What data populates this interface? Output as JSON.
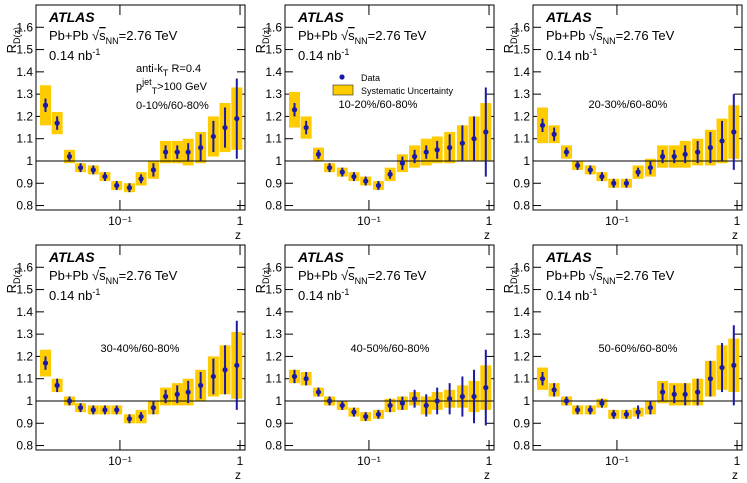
{
  "chart_data": [
    {
      "type": "scatter",
      "experiment": "ATLAS",
      "info": [
        [
          {
            "text": "Pb+Pb "
          },
          {
            "text": "√"
          },
          {
            "text": "s",
            "shift": "over"
          },
          {
            "text": "NN",
            "shift": "sub"
          },
          {
            "text": "=2.76 TeV"
          }
        ],
        [
          {
            "text": "0.14 nb"
          },
          {
            "text": "-1",
            "shift": "sup"
          }
        ]
      ],
      "extra": [
        [
          {
            "text": "anti-k"
          },
          {
            "text": "T",
            "shift": "sub"
          },
          {
            "text": " R=0.4"
          }
        ],
        [
          {
            "text": "p"
          },
          {
            "text": "jet",
            "shift": "sup"
          },
          {
            "text": "T",
            "shift": "sub"
          },
          {
            "text": ">100 GeV"
          }
        ]
      ],
      "label": "0-10%/60-80%",
      "ylabel": [
        {
          "text": "R"
        },
        {
          "text": "D(z)",
          "shift": "sub"
        }
      ],
      "xlabel": "z",
      "x": [
        0.024,
        0.03,
        0.038,
        0.047,
        0.06,
        0.075,
        0.094,
        0.12,
        0.15,
        0.19,
        0.24,
        0.3,
        0.37,
        0.47,
        0.6,
        0.75,
        0.94
      ],
      "values": [
        1.25,
        1.17,
        1.02,
        0.97,
        0.96,
        0.93,
        0.89,
        0.88,
        0.92,
        0.96,
        1.04,
        1.04,
        1.04,
        1.06,
        1.11,
        1.15,
        1.19
      ],
      "errors": [
        0.03,
        0.03,
        0.02,
        0.02,
        0.02,
        0.02,
        0.02,
        0.02,
        0.02,
        0.03,
        0.03,
        0.03,
        0.04,
        0.06,
        0.07,
        0.09,
        0.18
      ],
      "syst": [
        0.09,
        0.05,
        0.03,
        0.02,
        0.02,
        0.02,
        0.02,
        0.02,
        0.03,
        0.04,
        0.05,
        0.05,
        0.06,
        0.07,
        0.09,
        0.11,
        0.14
      ],
      "color": "#1a1aa8",
      "syst_color": "#ffcc00",
      "xscale": "log",
      "xlim": [
        0.02,
        1.1
      ],
      "ylim": [
        0.78,
        1.7
      ],
      "xticks": [
        {
          "value": 0.1,
          "label": "10⁻¹"
        },
        1
      ],
      "yticks": [
        0.8,
        0.9,
        1,
        1.1,
        1.2,
        1.3,
        1.4,
        1.5,
        1.6
      ],
      "hline": 1
    },
    {
      "type": "scatter",
      "experiment": "ATLAS",
      "info": [
        [
          {
            "text": "Pb+Pb "
          },
          {
            "text": "√"
          },
          {
            "text": "s",
            "shift": "over"
          },
          {
            "text": "NN",
            "shift": "sub"
          },
          {
            "text": "=2.76 TeV"
          }
        ],
        [
          {
            "text": "0.14 nb"
          },
          {
            "text": "-1",
            "shift": "sup"
          }
        ]
      ],
      "label": "10-20%/60-80%",
      "ylabel": [
        {
          "text": "R"
        },
        {
          "text": "D(z)",
          "shift": "sub"
        }
      ],
      "xlabel": "z",
      "legend": [
        {
          "name": "Data"
        },
        {
          "name": "Systematic Uncertainty"
        }
      ],
      "x": [
        0.024,
        0.03,
        0.038,
        0.047,
        0.06,
        0.075,
        0.094,
        0.12,
        0.15,
        0.19,
        0.24,
        0.3,
        0.37,
        0.47,
        0.6,
        0.75,
        0.94
      ],
      "values": [
        1.23,
        1.15,
        1.03,
        0.97,
        0.95,
        0.93,
        0.91,
        0.89,
        0.94,
        0.99,
        1.02,
        1.04,
        1.05,
        1.06,
        1.08,
        1.1,
        1.13
      ],
      "errors": [
        0.03,
        0.03,
        0.02,
        0.02,
        0.02,
        0.02,
        0.02,
        0.02,
        0.02,
        0.03,
        0.03,
        0.03,
        0.04,
        0.06,
        0.08,
        0.1,
        0.2
      ],
      "syst": [
        0.08,
        0.05,
        0.03,
        0.02,
        0.02,
        0.02,
        0.02,
        0.02,
        0.03,
        0.04,
        0.05,
        0.06,
        0.06,
        0.07,
        0.08,
        0.1,
        0.13
      ],
      "color": "#1a1aa8",
      "syst_color": "#ffcc00",
      "xscale": "log",
      "xlim": [
        0.02,
        1.1
      ],
      "ylim": [
        0.78,
        1.7
      ],
      "xticks": [
        {
          "value": 0.1,
          "label": "10⁻¹"
        },
        1
      ],
      "yticks": [
        0.8,
        0.9,
        1,
        1.1,
        1.2,
        1.3,
        1.4,
        1.5,
        1.6
      ],
      "hline": 1
    },
    {
      "type": "scatter",
      "experiment": "ATLAS",
      "info": [
        [
          {
            "text": "Pb+Pb "
          },
          {
            "text": "√"
          },
          {
            "text": "s",
            "shift": "over"
          },
          {
            "text": "NN",
            "shift": "sub"
          },
          {
            "text": "=2.76 TeV"
          }
        ],
        [
          {
            "text": "0.14 nb"
          },
          {
            "text": "-1",
            "shift": "sup"
          }
        ]
      ],
      "label": "20-30%/60-80%",
      "ylabel": [
        {
          "text": "R"
        },
        {
          "text": "D(z)",
          "shift": "sub"
        }
      ],
      "xlabel": "z",
      "x": [
        0.024,
        0.03,
        0.038,
        0.047,
        0.06,
        0.075,
        0.094,
        0.12,
        0.15,
        0.19,
        0.24,
        0.3,
        0.37,
        0.47,
        0.6,
        0.75,
        0.94
      ],
      "values": [
        1.16,
        1.12,
        1.04,
        0.98,
        0.96,
        0.93,
        0.9,
        0.9,
        0.95,
        0.97,
        1.02,
        1.02,
        1.03,
        1.04,
        1.06,
        1.09,
        1.13
      ],
      "errors": [
        0.03,
        0.03,
        0.02,
        0.02,
        0.02,
        0.02,
        0.02,
        0.02,
        0.02,
        0.03,
        0.03,
        0.03,
        0.04,
        0.05,
        0.07,
        0.09,
        0.17
      ],
      "syst": [
        0.08,
        0.04,
        0.03,
        0.02,
        0.02,
        0.02,
        0.02,
        0.02,
        0.03,
        0.04,
        0.05,
        0.05,
        0.06,
        0.06,
        0.08,
        0.1,
        0.12
      ],
      "color": "#1a1aa8",
      "syst_color": "#ffcc00",
      "xscale": "log",
      "xlim": [
        0.02,
        1.1
      ],
      "ylim": [
        0.78,
        1.7
      ],
      "xticks": [
        {
          "value": 0.1,
          "label": "10⁻¹"
        },
        1
      ],
      "yticks": [
        0.8,
        0.9,
        1,
        1.1,
        1.2,
        1.3,
        1.4,
        1.5,
        1.6
      ],
      "hline": 1
    },
    {
      "type": "scatter",
      "experiment": "ATLAS",
      "info": [
        [
          {
            "text": "Pb+Pb "
          },
          {
            "text": "√"
          },
          {
            "text": "s",
            "shift": "over"
          },
          {
            "text": "NN",
            "shift": "sub"
          },
          {
            "text": "=2.76 TeV"
          }
        ],
        [
          {
            "text": "0.14 nb"
          },
          {
            "text": "-1",
            "shift": "sup"
          }
        ]
      ],
      "label": "30-40%/60-80%",
      "ylabel": [
        {
          "text": "R"
        },
        {
          "text": "D(z)",
          "shift": "sub"
        }
      ],
      "xlabel": "z",
      "x": [
        0.024,
        0.03,
        0.038,
        0.047,
        0.06,
        0.075,
        0.094,
        0.12,
        0.15,
        0.19,
        0.24,
        0.3,
        0.37,
        0.47,
        0.6,
        0.75,
        0.94
      ],
      "values": [
        1.17,
        1.07,
        1.0,
        0.97,
        0.96,
        0.96,
        0.96,
        0.92,
        0.93,
        0.97,
        1.02,
        1.03,
        1.04,
        1.07,
        1.11,
        1.14,
        1.16
      ],
      "errors": [
        0.03,
        0.03,
        0.02,
        0.02,
        0.02,
        0.02,
        0.02,
        0.02,
        0.02,
        0.03,
        0.03,
        0.04,
        0.05,
        0.06,
        0.08,
        0.11,
        0.2
      ],
      "syst": [
        0.06,
        0.03,
        0.02,
        0.02,
        0.02,
        0.02,
        0.02,
        0.02,
        0.03,
        0.03,
        0.04,
        0.05,
        0.06,
        0.07,
        0.09,
        0.11,
        0.15
      ],
      "color": "#1a1aa8",
      "syst_color": "#ffcc00",
      "xscale": "log",
      "xlim": [
        0.02,
        1.1
      ],
      "ylim": [
        0.78,
        1.7
      ],
      "xticks": [
        {
          "value": 0.1,
          "label": "10⁻¹"
        },
        1
      ],
      "yticks": [
        0.8,
        0.9,
        1,
        1.1,
        1.2,
        1.3,
        1.4,
        1.5,
        1.6
      ],
      "hline": 1
    },
    {
      "type": "scatter",
      "experiment": "ATLAS",
      "info": [
        [
          {
            "text": "Pb+Pb "
          },
          {
            "text": "√"
          },
          {
            "text": "s",
            "shift": "over"
          },
          {
            "text": "NN",
            "shift": "sub"
          },
          {
            "text": "=2.76 TeV"
          }
        ],
        [
          {
            "text": "0.14 nb"
          },
          {
            "text": "-1",
            "shift": "sup"
          }
        ]
      ],
      "label": "40-50%/60-80%",
      "ylabel": [
        {
          "text": "R"
        },
        {
          "text": "D(z)",
          "shift": "sub"
        }
      ],
      "xlabel": "z",
      "x": [
        0.024,
        0.03,
        0.038,
        0.047,
        0.06,
        0.075,
        0.094,
        0.12,
        0.15,
        0.19,
        0.24,
        0.3,
        0.37,
        0.47,
        0.6,
        0.75,
        0.94
      ],
      "values": [
        1.11,
        1.1,
        1.04,
        1.0,
        0.98,
        0.95,
        0.93,
        0.94,
        0.98,
        0.99,
        1.01,
        0.98,
        1.0,
        1.01,
        1.02,
        1.02,
        1.06
      ],
      "errors": [
        0.03,
        0.03,
        0.02,
        0.02,
        0.02,
        0.02,
        0.02,
        0.02,
        0.03,
        0.03,
        0.04,
        0.05,
        0.06,
        0.07,
        0.09,
        0.12,
        0.17
      ],
      "syst": [
        0.03,
        0.03,
        0.02,
        0.02,
        0.02,
        0.02,
        0.02,
        0.02,
        0.03,
        0.03,
        0.03,
        0.04,
        0.04,
        0.04,
        0.05,
        0.07,
        0.1
      ],
      "color": "#1a1aa8",
      "syst_color": "#ffcc00",
      "xscale": "log",
      "xlim": [
        0.02,
        1.1
      ],
      "ylim": [
        0.78,
        1.7
      ],
      "xticks": [
        {
          "value": 0.1,
          "label": "10⁻¹"
        },
        1
      ],
      "yticks": [
        0.8,
        0.9,
        1,
        1.1,
        1.2,
        1.3,
        1.4,
        1.5,
        1.6
      ],
      "hline": 1
    },
    {
      "type": "scatter",
      "experiment": "ATLAS",
      "info": [
        [
          {
            "text": "Pb+Pb "
          },
          {
            "text": "√"
          },
          {
            "text": "s",
            "shift": "over"
          },
          {
            "text": "NN",
            "shift": "sub"
          },
          {
            "text": "=2.76 TeV"
          }
        ],
        [
          {
            "text": "0.14 nb"
          },
          {
            "text": "-1",
            "shift": "sup"
          }
        ]
      ],
      "label": "50-60%/60-80%",
      "ylabel": [
        {
          "text": "R"
        },
        {
          "text": "D(z)",
          "shift": "sub"
        }
      ],
      "xlabel": "z",
      "x": [
        0.024,
        0.03,
        0.038,
        0.047,
        0.06,
        0.075,
        0.094,
        0.12,
        0.15,
        0.19,
        0.24,
        0.3,
        0.37,
        0.47,
        0.6,
        0.75,
        0.94
      ],
      "values": [
        1.1,
        1.05,
        1.0,
        0.96,
        0.96,
        0.99,
        0.94,
        0.94,
        0.95,
        0.97,
        1.04,
        1.03,
        1.03,
        1.04,
        1.1,
        1.15,
        1.16
      ],
      "errors": [
        0.03,
        0.03,
        0.02,
        0.02,
        0.02,
        0.02,
        0.02,
        0.02,
        0.03,
        0.03,
        0.04,
        0.04,
        0.05,
        0.06,
        0.08,
        0.11,
        0.18
      ],
      "syst": [
        0.05,
        0.03,
        0.02,
        0.02,
        0.02,
        0.02,
        0.02,
        0.02,
        0.02,
        0.03,
        0.05,
        0.05,
        0.05,
        0.06,
        0.08,
        0.1,
        0.12
      ],
      "color": "#1a1aa8",
      "syst_color": "#ffcc00",
      "xscale": "log",
      "xlim": [
        0.02,
        1.1
      ],
      "ylim": [
        0.78,
        1.7
      ],
      "xticks": [
        {
          "value": 0.1,
          "label": "10⁻¹"
        },
        1
      ],
      "yticks": [
        0.8,
        0.9,
        1,
        1.1,
        1.2,
        1.3,
        1.4,
        1.5,
        1.6
      ],
      "hline": 1
    }
  ]
}
